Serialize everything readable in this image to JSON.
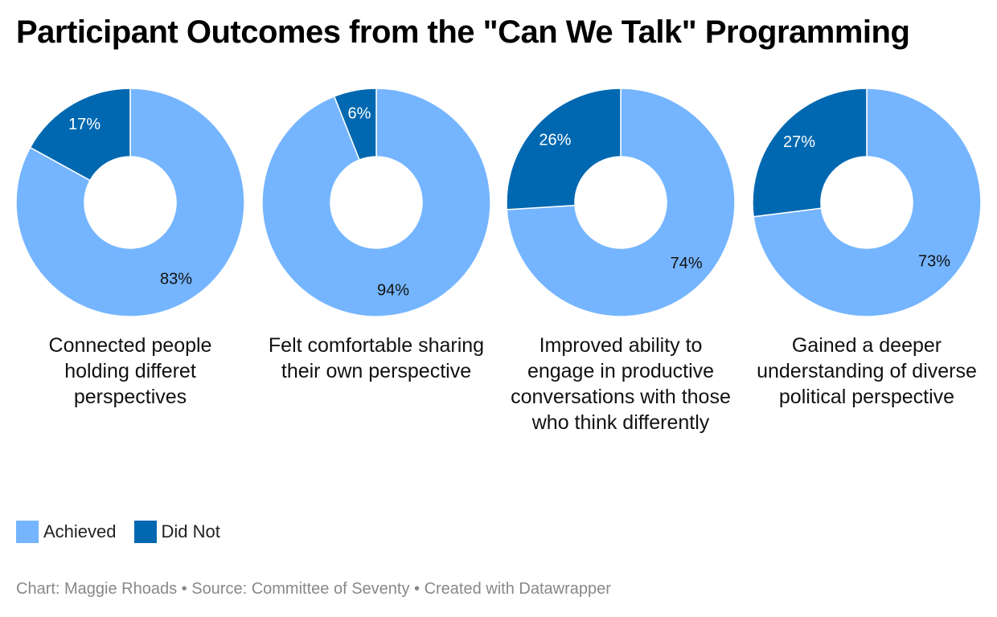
{
  "title": "Participant Outcomes from the \"Can We Talk\" Programming",
  "colors": {
    "achieved": "#75b5ff",
    "did_not": "#0068b0"
  },
  "legend": {
    "achieved_label": "Achieved",
    "did_not_label": "Did Not"
  },
  "footer": "Chart: Maggie Rhoads • Source: Committee of Seventy • Created with Datawrapper",
  "chart_data": [
    {
      "type": "pie",
      "caption": "Connected people holding differet perspectives",
      "slices": [
        {
          "name": "Achieved",
          "value": 83,
          "label": "83%"
        },
        {
          "name": "Did Not",
          "value": 17,
          "label": "17%"
        }
      ]
    },
    {
      "type": "pie",
      "caption": "Felt comfortable sharing their own perspective",
      "slices": [
        {
          "name": "Achieved",
          "value": 94,
          "label": "94%"
        },
        {
          "name": "Did Not",
          "value": 6,
          "label": "6%"
        }
      ]
    },
    {
      "type": "pie",
      "caption": "Improved ability to engage in productive conversations with those who think differently",
      "slices": [
        {
          "name": "Achieved",
          "value": 74,
          "label": "74%"
        },
        {
          "name": "Did Not",
          "value": 26,
          "label": "26%"
        }
      ]
    },
    {
      "type": "pie",
      "caption": "Gained a deeper understanding of diverse political perspective",
      "slices": [
        {
          "name": "Achieved",
          "value": 73,
          "label": "73%"
        },
        {
          "name": "Did Not",
          "value": 27,
          "label": "27%"
        }
      ]
    }
  ]
}
